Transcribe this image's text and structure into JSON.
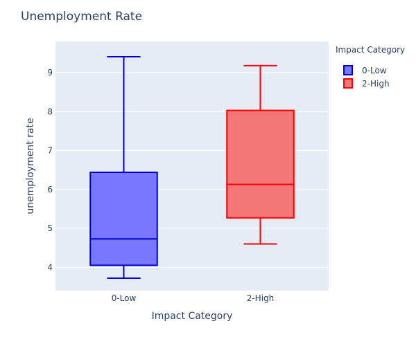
{
  "chart_data": {
    "type": "box",
    "title": "Unemployment Rate",
    "xlabel": "Impact Category",
    "ylabel": "unemployment rate",
    "categories": [
      "0-Low",
      "2-High"
    ],
    "ylim": [
      3.4,
      9.8
    ],
    "yticks": [
      4,
      5,
      6,
      7,
      8,
      9
    ],
    "grid": true,
    "legend": {
      "title": "Impact Category",
      "placement": "top-right",
      "entries": [
        "0-Low",
        "2-High"
      ]
    },
    "series": [
      {
        "name": "0-Low",
        "min": 3.72,
        "q1": 4.05,
        "median": 4.73,
        "q3": 6.44,
        "max": 9.41,
        "line_color": "#0000cc",
        "fill_color": "#7777ff"
      },
      {
        "name": "2-High",
        "min": 4.6,
        "q1": 5.27,
        "median": 6.13,
        "q3": 8.03,
        "max": 9.18,
        "line_color": "#ff0000",
        "fill_color": "#f37777"
      }
    ]
  }
}
